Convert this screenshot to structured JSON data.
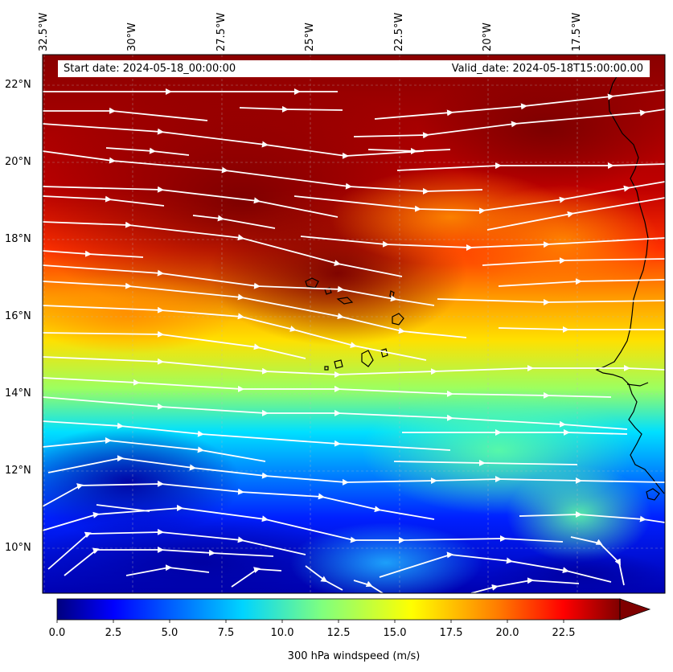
{
  "map": {
    "start_date": "Start date: 2024-05-18_00:00:00",
    "valid_date": "Valid_date: 2024-05-18T15:00:00.00",
    "longitude_labels": [
      "32.5°W",
      "30°W",
      "27.5°W",
      "25°W",
      "22.5°W",
      "20°W",
      "17.5°W"
    ],
    "latitude_labels": [
      "22°N",
      "20°N",
      "18°N",
      "16°N",
      "14°N",
      "12°N",
      "10°N"
    ],
    "extent": {
      "lon_min": -32.7,
      "lon_max": -15.2,
      "lat_min": 8.9,
      "lat_max": 22.8
    },
    "field": "300 hPa windspeed",
    "overlay": "wind streamlines (white)",
    "coastline_color": "#000000"
  },
  "colorbar": {
    "label": "300 hPa windspeed (m/s)",
    "ticks": [
      "0.0",
      "2.5",
      "5.0",
      "7.5",
      "10.0",
      "12.5",
      "15.0",
      "17.5",
      "20.0",
      "22.5"
    ],
    "range": [
      0,
      25
    ],
    "extend": "max",
    "colormap": [
      "#00007f",
      "#0000ff",
      "#007fff",
      "#00ffff",
      "#7fff7f",
      "#ffff00",
      "#ff7f00",
      "#ff0000",
      "#7f0000"
    ]
  }
}
